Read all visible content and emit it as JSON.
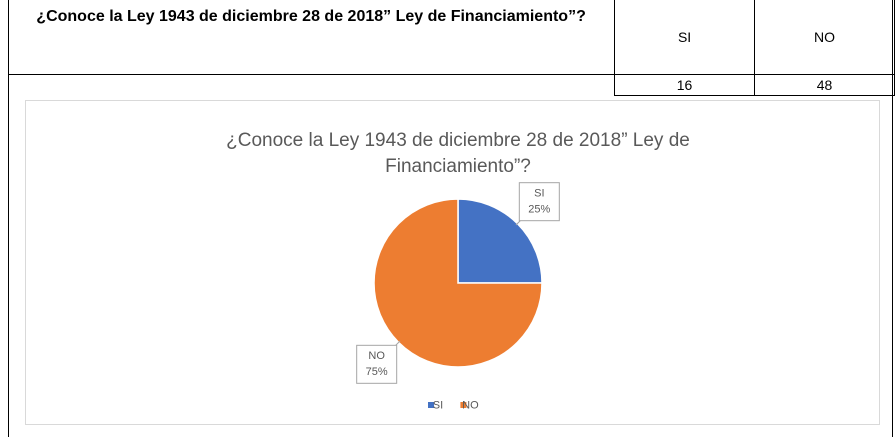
{
  "table": {
    "question": "¿Conoce la Ley 1943 de diciembre 28 de 2018” Ley de Financiamiento”?",
    "headers": [
      "SI",
      "NO"
    ],
    "values": [
      "16",
      "48"
    ]
  },
  "chart_data": {
    "type": "pie",
    "title": "¿Conoce la Ley 1943 de diciembre 28 de 2018” Ley de Financiamiento”?",
    "categories": [
      "SI",
      "NO"
    ],
    "values": [
      25,
      75
    ],
    "value_labels": [
      "25%",
      "75%"
    ],
    "colors": [
      "#4472c4",
      "#ed7d31"
    ],
    "legend": "bottom"
  }
}
